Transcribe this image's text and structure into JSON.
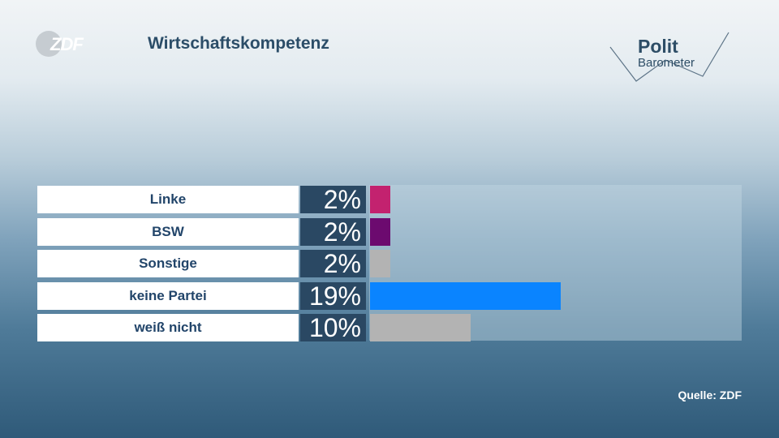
{
  "header": {
    "title": "Wirtschaftskompetenz",
    "broadcaster_logo": "ZDF",
    "brand_logo_line1": "Polit",
    "brand_logo_line2": "Barometer"
  },
  "footer": {
    "source": "Quelle: ZDF"
  },
  "chart_data": {
    "type": "bar",
    "orientation": "horizontal",
    "title": "Wirtschaftskompetenz",
    "categories": [
      "Linke",
      "BSW",
      "Sonstige",
      "keine Partei",
      "weiß nicht"
    ],
    "values": [
      2,
      2,
      2,
      19,
      10
    ],
    "value_labels": [
      "2%",
      "2%",
      "2%",
      "19%",
      "10%"
    ],
    "unit": "%",
    "colors": [
      "#c3226f",
      "#6c0a6f",
      "#b3b3b3",
      "#0a84ff",
      "#b3b3b3"
    ],
    "xlim": [
      0,
      37
    ],
    "grid": false
  }
}
